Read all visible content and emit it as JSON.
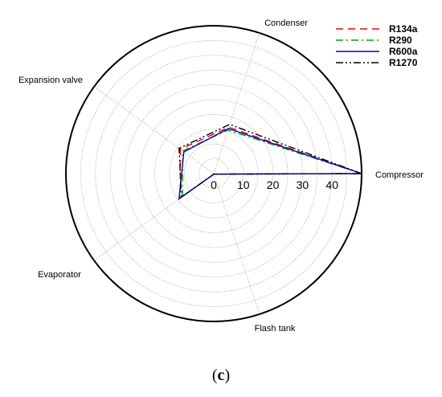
{
  "chart_data": {
    "type": "radar",
    "axes": [
      "Compressor",
      "Condenser",
      "Expansion valve",
      "Evaporator",
      "Flash tank"
    ],
    "radial_ticks": [
      "0",
      "10",
      "20",
      "30",
      "40"
    ],
    "rlim": [
      0,
      50
    ],
    "grid": true,
    "legend_position": "top-right",
    "series": [
      {
        "name": "R134a",
        "color": "#ff0000",
        "dash": "dashed",
        "values": [
          50,
          16.5,
          14.0,
          14.0,
          0.2
        ]
      },
      {
        "name": "R290",
        "color": "#00aa00",
        "dash": "dashdot",
        "values": [
          50,
          15.5,
          13.0,
          13.0,
          0.2
        ]
      },
      {
        "name": "R600a",
        "color": "#0000cc",
        "dash": "solid",
        "values": [
          50,
          16.0,
          12.5,
          14.5,
          0.2
        ]
      },
      {
        "name": "R1270",
        "color": "#000000",
        "dash": "dashdotdot",
        "values": [
          50,
          17.5,
          14.5,
          13.5,
          0.2
        ]
      }
    ]
  },
  "panel_label": "c"
}
